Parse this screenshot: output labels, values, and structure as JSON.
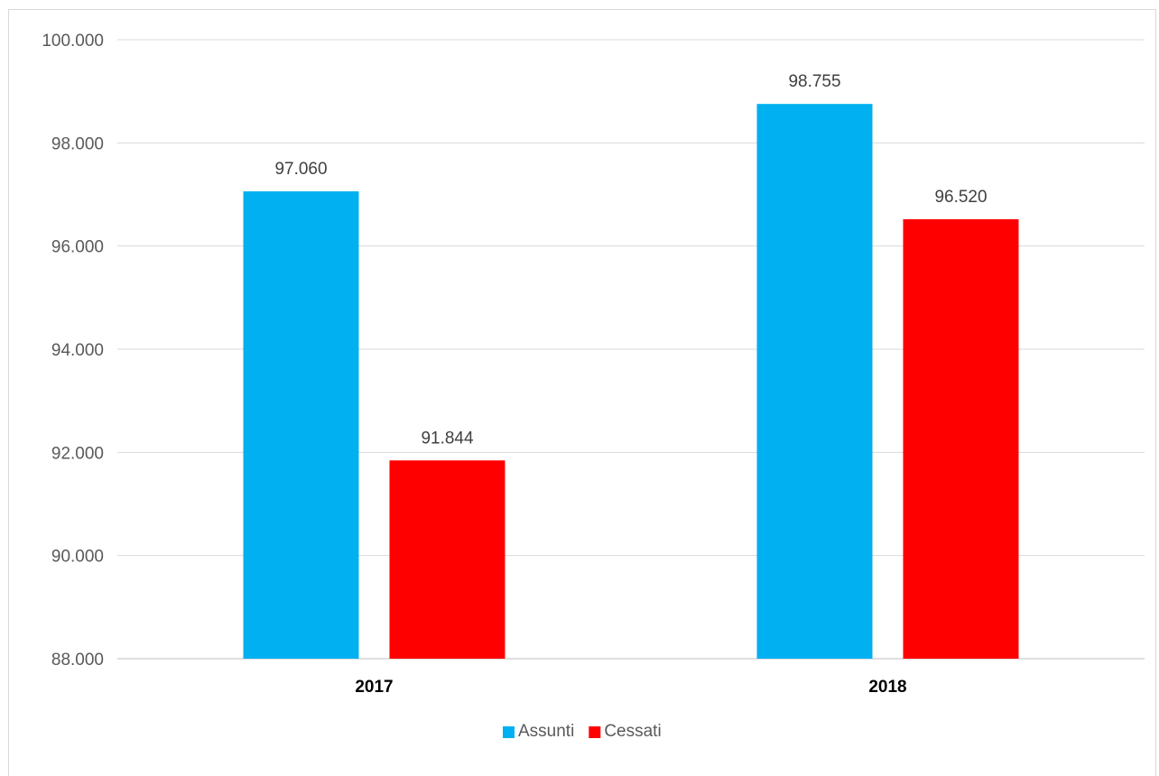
{
  "chart_data": {
    "type": "bar",
    "categories": [
      "2017",
      "2018"
    ],
    "series": [
      {
        "name": "Assunti",
        "values": [
          97060,
          98755
        ],
        "labels": [
          "97.060",
          "98.755"
        ],
        "color": "#00b0f0"
      },
      {
        "name": "Cessati",
        "values": [
          91844,
          96520
        ],
        "labels": [
          "91.844",
          "96.520"
        ],
        "color": "#ff0000"
      }
    ],
    "ylim": [
      88000,
      100000
    ],
    "yticks": [
      88000,
      90000,
      92000,
      94000,
      96000,
      98000,
      100000
    ],
    "ytick_labels": [
      "88.000",
      "90.000",
      "92.000",
      "94.000",
      "96.000",
      "98.000",
      "100.000"
    ],
    "grid": true,
    "legend_position": "bottom",
    "title": "",
    "xlabel": "",
    "ylabel": ""
  }
}
